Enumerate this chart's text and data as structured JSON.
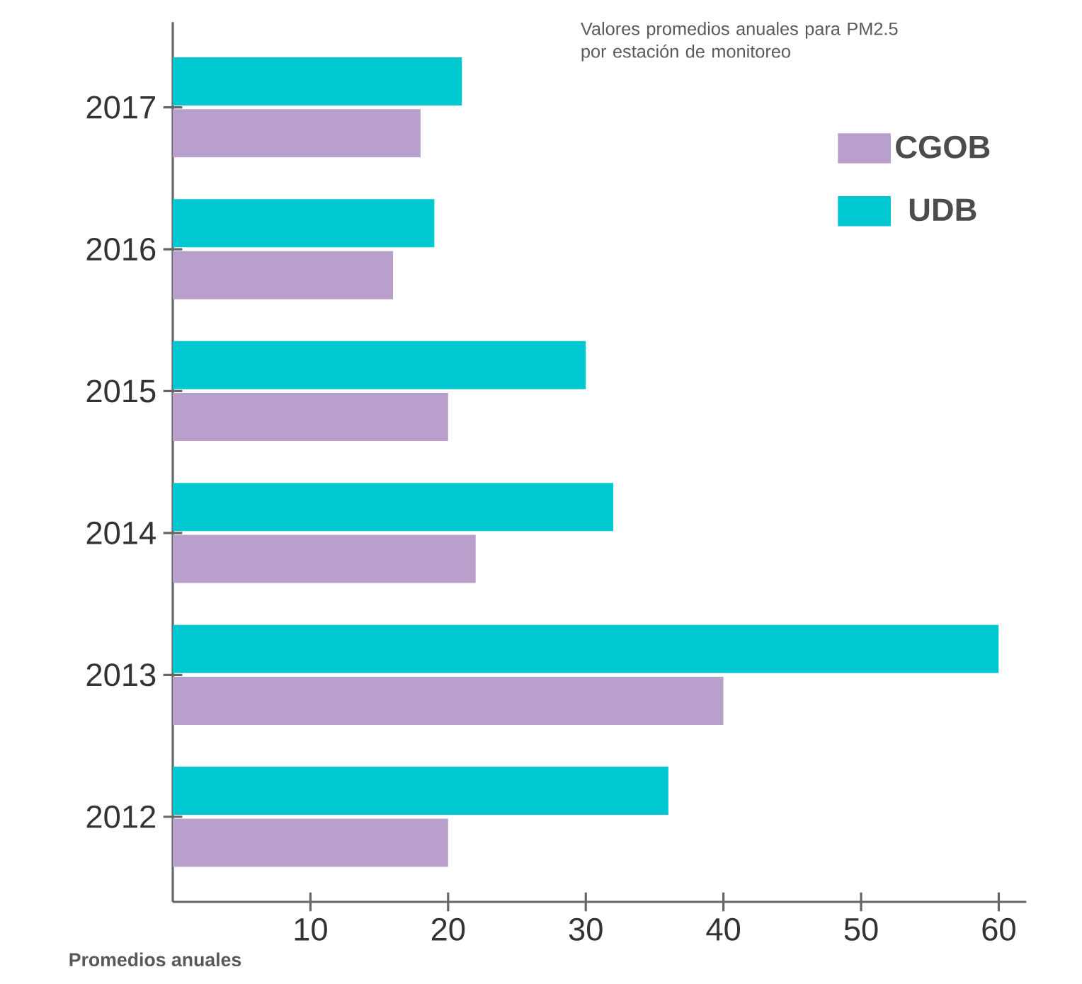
{
  "chart_data": {
    "type": "bar",
    "orientation": "horizontal",
    "title": "Valores promedios anuales para PM2.5 por estación de monitoreo",
    "xlabel": "Promedios anuales",
    "categories": [
      "2017",
      "2016",
      "2015",
      "2014",
      "2013",
      "2012"
    ],
    "series": [
      {
        "name": "CGOB",
        "color": "#b9a0cc",
        "values": [
          18,
          16,
          20,
          22,
          40,
          20
        ]
      },
      {
        "name": "UDB",
        "color": "#00c8d0",
        "values": [
          21,
          19,
          30,
          32,
          60,
          36
        ]
      }
    ],
    "xlim": [
      0,
      62
    ],
    "xticks": [
      10,
      20,
      30,
      40,
      50,
      60
    ],
    "legend": "top right"
  }
}
